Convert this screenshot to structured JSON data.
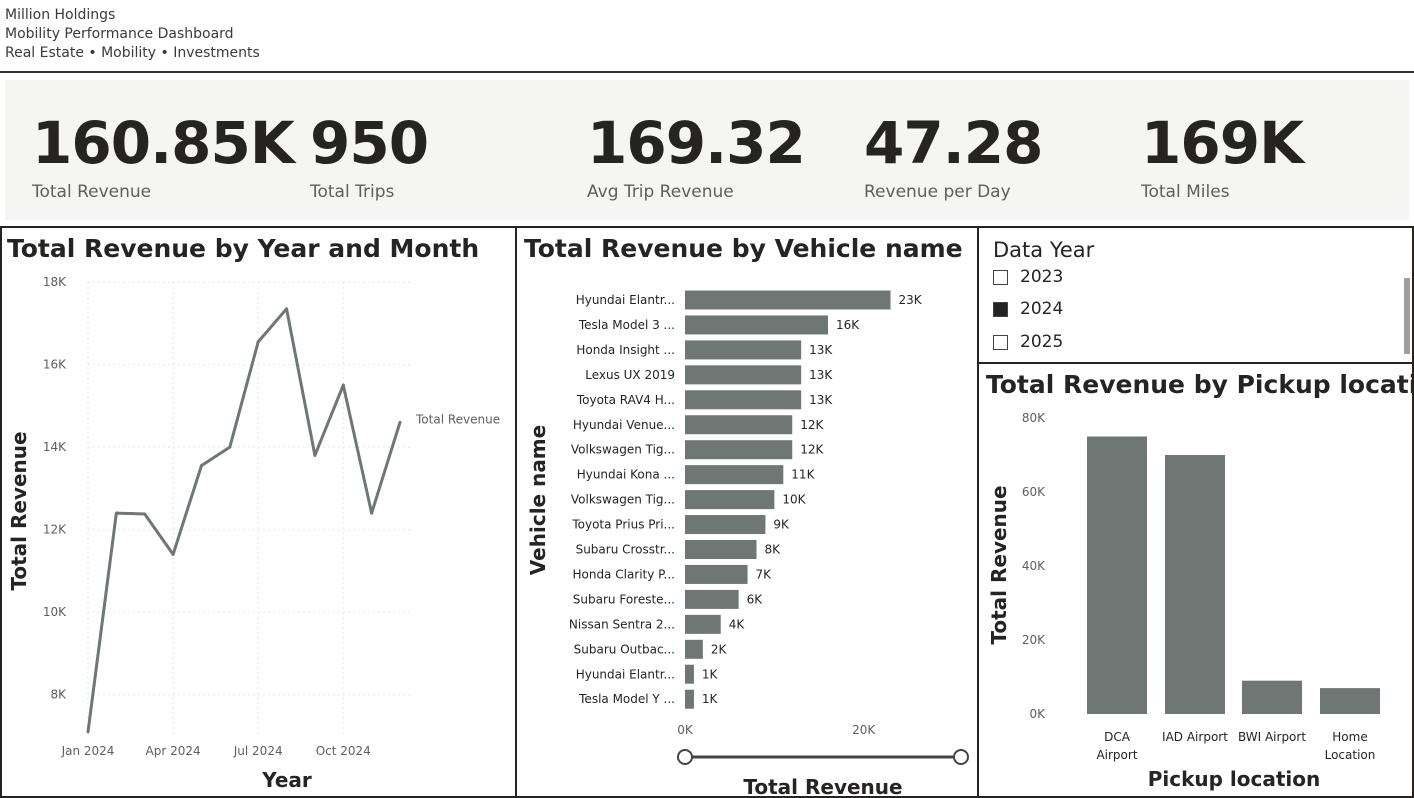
{
  "header": {
    "company": "Million Holdings",
    "dashboard": "Mobility Performance Dashboard",
    "tagline": "Real Estate • Mobility • Investments"
  },
  "kpis": [
    {
      "value": "160.85K",
      "label": "Total Revenue"
    },
    {
      "value": "950",
      "label": "Total Trips"
    },
    {
      "value": "169.32",
      "label": "Avg Trip Revenue"
    },
    {
      "value": "47.28",
      "label": "Revenue per Day"
    },
    {
      "value": "169K",
      "label": "Total Miles"
    }
  ],
  "colors": {
    "series": "#6f7775",
    "grid": "#e6e6e6",
    "text": "#252423"
  },
  "slicer": {
    "title": "Data Year",
    "options": [
      {
        "label": "2023",
        "checked": false
      },
      {
        "label": "2024",
        "checked": true
      },
      {
        "label": "2025",
        "checked": false
      }
    ]
  },
  "chart_data": [
    {
      "type": "line",
      "title": "Total Revenue by Year and Month",
      "xlabel": "Year",
      "ylabel": "Total Revenue",
      "x": [
        "2024-01",
        "2024-02",
        "2024-03",
        "2024-04",
        "2024-05",
        "2024-06",
        "2024-07",
        "2024-08",
        "2024-09",
        "2024-10",
        "2024-11",
        "2024-12"
      ],
      "xticks": [
        "Jan 2024",
        "Apr 2024",
        "Jul 2024",
        "Oct 2024"
      ],
      "yticks": [
        "8K",
        "10K",
        "12K",
        "14K",
        "16K",
        "18K"
      ],
      "ylim": [
        7000,
        18000
      ],
      "series": [
        {
          "name": "Total Revenue",
          "values": [
            7100,
            12400,
            12380,
            11400,
            13550,
            14000,
            16550,
            17350,
            13800,
            15500,
            12400,
            14600
          ]
        }
      ],
      "grid": true
    },
    {
      "type": "bar",
      "orientation": "horizontal",
      "title": "Total Revenue by Vehicle name",
      "xlabel": "Total Revenue",
      "ylabel": "Vehicle name",
      "categories": [
        "Hyundai Elantr...",
        "Tesla Model 3 ...",
        "Honda Insight ...",
        "Lexus UX 2019",
        "Toyota RAV4 H...",
        "Hyundai Venue...",
        "Volkswagen Tig...",
        "Hyundai Kona ...",
        "Volkswagen Tig...",
        "Toyota Prius Pri...",
        "Subaru Crosstr...",
        "Honda Clarity P...",
        "Subaru Foreste...",
        "Nissan Sentra 2...",
        "Subaru Outbac...",
        "Hyundai Elantr...",
        "Tesla Model Y ..."
      ],
      "values": [
        23000,
        16000,
        13000,
        13000,
        13000,
        12000,
        12000,
        11000,
        10000,
        9000,
        8000,
        7000,
        6000,
        4000,
        2000,
        1000,
        1000
      ],
      "data_labels": [
        "23K",
        "16K",
        "13K",
        "13K",
        "13K",
        "12K",
        "12K",
        "11K",
        "10K",
        "9K",
        "8K",
        "7K",
        "6K",
        "4K",
        "2K",
        "1K",
        "1K"
      ],
      "xticks": [
        "0K",
        "20K"
      ],
      "xlim": [
        0,
        23500
      ]
    },
    {
      "type": "bar",
      "title": "Total Revenue by Pickup location",
      "xlabel": "Pickup location",
      "ylabel": "Total Revenue",
      "categories": [
        "DCA Airport",
        "IAD Airport",
        "BWI Airport",
        "Home Location"
      ],
      "values": [
        75000,
        70000,
        9000,
        7000
      ],
      "yticks": [
        "0K",
        "20K",
        "40K",
        "60K",
        "80K"
      ],
      "ylim": [
        0,
        80000
      ]
    }
  ]
}
